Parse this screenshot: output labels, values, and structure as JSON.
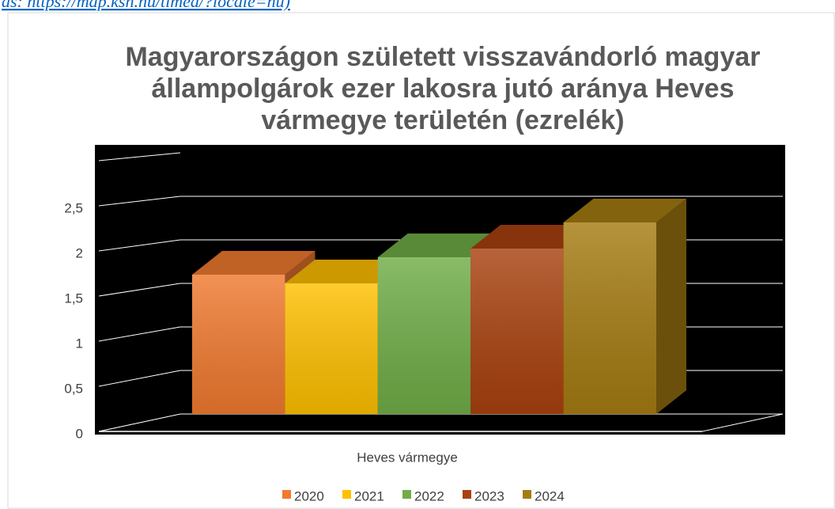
{
  "note": "ás: https://map.ksh.hu/timea/?locale=hu)",
  "chart_data": {
    "type": "bar3d",
    "title": [
      "Magyarországon született visszavándorló magyar",
      "állampolgárok ezer lakosra jutó aránya Heves",
      "vármegye területén (ezrelék)"
    ],
    "categories": [
      "Heves vármegye"
    ],
    "series": [
      {
        "name": "2020",
        "color": "#f07a30",
        "values": [
          1.6
        ]
      },
      {
        "name": "2021",
        "color": "#ffc000",
        "values": [
          1.5
        ]
      },
      {
        "name": "2022",
        "color": "#70ad47",
        "values": [
          1.8
        ]
      },
      {
        "name": "2023",
        "color": "#a9410f",
        "values": [
          1.9
        ]
      },
      {
        "name": "2024",
        "color": "#a57c12",
        "values": [
          2.2
        ]
      }
    ],
    "ylim": [
      0,
      3
    ],
    "yticks": [
      0,
      {
        "value": 0.5,
        "label": "0,5"
      },
      1,
      {
        "value": 1.5,
        "label": "1,5"
      },
      2,
      {
        "value": 2.5,
        "label": "2,5"
      }
    ],
    "grid": true,
    "legend": "bottom"
  }
}
